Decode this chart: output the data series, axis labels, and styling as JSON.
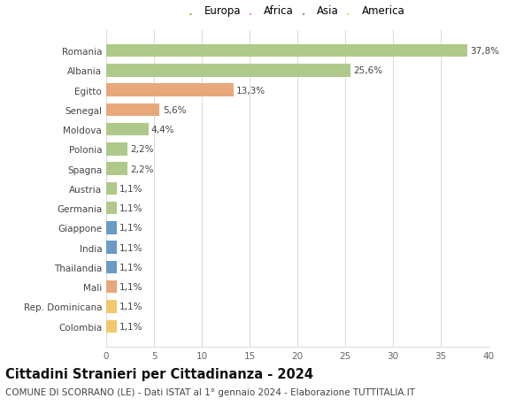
{
  "countries": [
    "Romania",
    "Albania",
    "Egitto",
    "Senegal",
    "Moldova",
    "Polonia",
    "Spagna",
    "Austria",
    "Germania",
    "Giappone",
    "India",
    "Thailandia",
    "Mali",
    "Rep. Dominicana",
    "Colombia"
  ],
  "values": [
    37.8,
    25.6,
    13.3,
    5.6,
    4.4,
    2.2,
    2.2,
    1.1,
    1.1,
    1.1,
    1.1,
    1.1,
    1.1,
    1.1,
    1.1
  ],
  "labels": [
    "37,8%",
    "25,6%",
    "13,3%",
    "5,6%",
    "4,4%",
    "2,2%",
    "2,2%",
    "1,1%",
    "1,1%",
    "1,1%",
    "1,1%",
    "1,1%",
    "1,1%",
    "1,1%",
    "1,1%"
  ],
  "continents": [
    "Europa",
    "Europa",
    "Africa",
    "Africa",
    "Europa",
    "Europa",
    "Europa",
    "Europa",
    "Europa",
    "Asia",
    "Asia",
    "Asia",
    "Africa",
    "America",
    "America"
  ],
  "continent_colors": {
    "Europa": "#aec98a",
    "Africa": "#e8a87c",
    "Asia": "#6b9bc3",
    "America": "#f0c96e"
  },
  "legend_order": [
    "Europa",
    "Africa",
    "Asia",
    "America"
  ],
  "title": "Cittadini Stranieri per Cittadinanza - 2024",
  "subtitle": "COMUNE DI SCORRANO (LE) - Dati ISTAT al 1° gennaio 2024 - Elaborazione TUTTITALIA.IT",
  "xlim": [
    0,
    40
  ],
  "xticks": [
    0,
    5,
    10,
    15,
    20,
    25,
    30,
    35,
    40
  ],
  "background_color": "#ffffff",
  "grid_color": "#dddddd",
  "bar_height": 0.65,
  "title_fontsize": 10.5,
  "subtitle_fontsize": 7.5,
  "label_fontsize": 7.5,
  "tick_fontsize": 7.5,
  "legend_fontsize": 8.5
}
